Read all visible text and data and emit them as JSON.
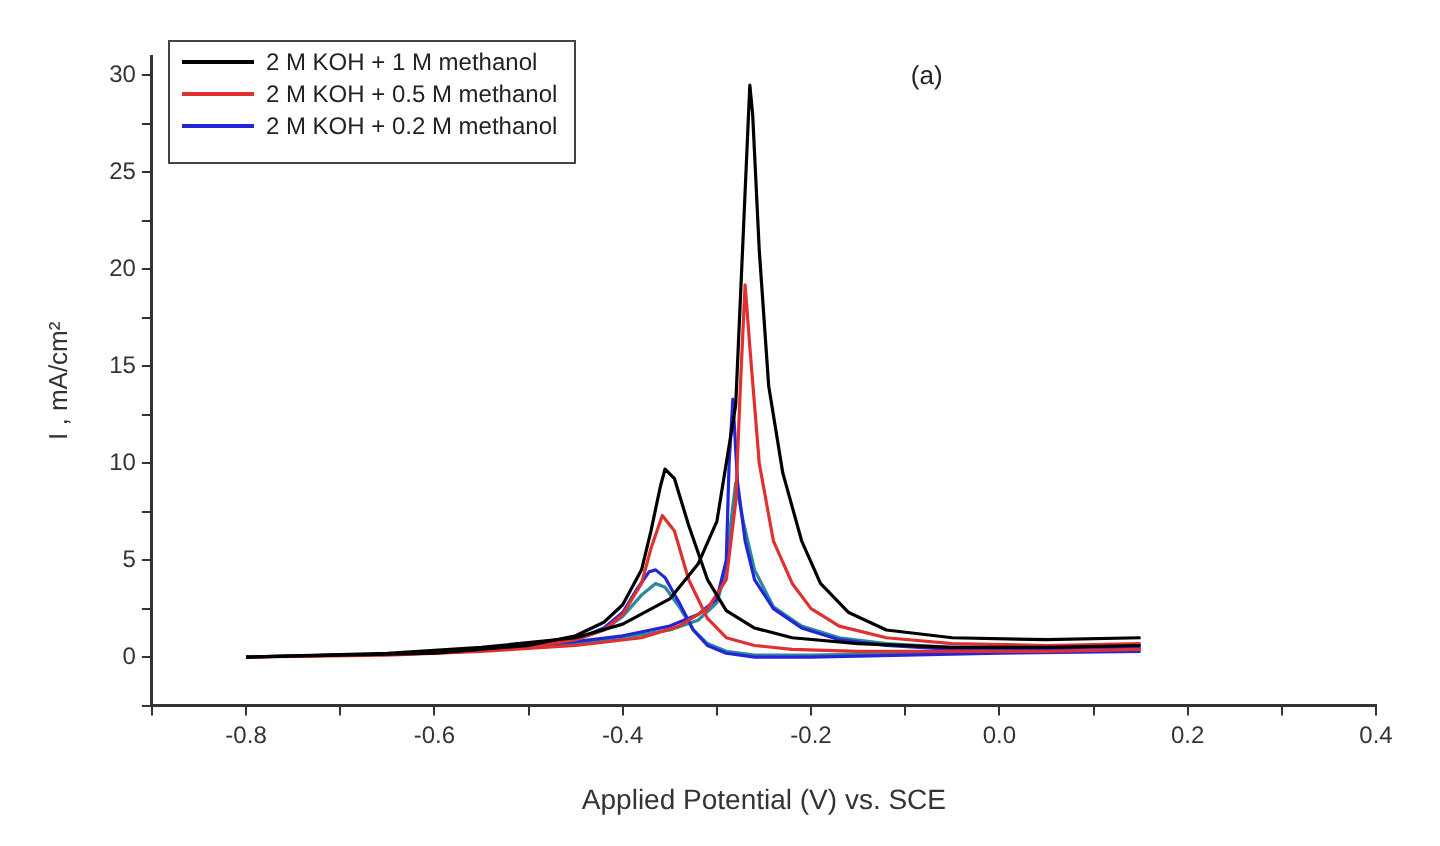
{
  "chart_data": {
    "type": "line",
    "xlabel": "Applied Potential (V) vs. SCE",
    "ylabel": "I , mA/cm²",
    "annotations": [
      "(a)"
    ],
    "xlim": [
      -0.9,
      0.4
    ],
    "xticks": [
      {
        "value": -0.9,
        "label": null
      },
      -0.8,
      {
        "value": -0.7,
        "label": null
      },
      -0.6,
      {
        "value": -0.5,
        "label": null
      },
      -0.4,
      {
        "value": -0.3,
        "label": null
      },
      -0.2,
      {
        "value": -0.1,
        "label": null
      },
      {
        "value": 0,
        "label": "0.0"
      },
      {
        "value": 0.1,
        "label": null
      },
      0.2,
      {
        "value": 0.3,
        "label": null
      },
      0.4
    ],
    "ylim": [
      -2.5,
      31
    ],
    "yticks": [
      {
        "value": -2.5,
        "label": null
      },
      0,
      {
        "value": 2.5,
        "label": null
      },
      5,
      {
        "value": 7.5,
        "label": null
      },
      10,
      {
        "value": 12.5,
        "label": null
      },
      15,
      {
        "value": 17.5,
        "label": null
      },
      20,
      {
        "value": 22.5,
        "label": null
      },
      25,
      {
        "value": 27.5,
        "label": null
      },
      30
    ],
    "grid": false,
    "legend": "top left",
    "marker": "none",
    "line_style": "solid",
    "series": [
      {
        "name": "2 M KOH + 1 M methanol",
        "color": "#000000",
        "x": [
          -0.8,
          -0.7,
          -0.6,
          -0.5,
          -0.45,
          -0.42,
          -0.4,
          -0.38,
          -0.37,
          -0.36,
          -0.355,
          -0.345,
          -0.33,
          -0.31,
          -0.29,
          -0.26,
          -0.22,
          -0.15,
          -0.05,
          0.05,
          0.15
        ],
        "values": [
          0,
          0.1,
          0.2,
          0.6,
          1.1,
          1.8,
          2.7,
          4.5,
          6.5,
          8.8,
          9.7,
          9.2,
          6.8,
          4,
          2.4,
          1.5,
          1,
          0.7,
          0.5,
          0.5,
          0.6
        ]
      },
      {
        "color": "#000000",
        "x": [
          -0.8,
          -0.65,
          -0.55,
          -0.45,
          -0.4,
          -0.35,
          -0.32,
          -0.3,
          -0.28,
          -0.27,
          -0.265,
          -0.262,
          -0.255,
          -0.245,
          -0.23,
          -0.21,
          -0.19,
          -0.16,
          -0.12,
          -0.05,
          0.05,
          0.15
        ],
        "values": [
          0,
          0.2,
          0.5,
          1,
          1.7,
          3,
          4.8,
          7,
          13,
          24,
          29.5,
          28,
          21,
          14,
          9.5,
          6,
          3.8,
          2.3,
          1.4,
          1,
          0.9,
          1
        ]
      },
      {
        "name": "2 M KOH + 0.5 M methanol",
        "color": "#e03030",
        "x": [
          -0.8,
          -0.7,
          -0.6,
          -0.5,
          -0.45,
          -0.42,
          -0.4,
          -0.38,
          -0.37,
          -0.358,
          -0.345,
          -0.33,
          -0.31,
          -0.29,
          -0.26,
          -0.22,
          -0.15,
          -0.05,
          0.05,
          0.15
        ],
        "values": [
          0,
          0.1,
          0.2,
          0.5,
          0.9,
          1.4,
          2.2,
          3.8,
          5.6,
          7.3,
          6.5,
          4,
          2,
          1,
          0.6,
          0.4,
          0.3,
          0.3,
          0.3,
          0.4
        ]
      },
      {
        "color": "#e03030",
        "x": [
          -0.8,
          -0.65,
          -0.55,
          -0.45,
          -0.38,
          -0.34,
          -0.31,
          -0.29,
          -0.28,
          -0.275,
          -0.27,
          -0.265,
          -0.255,
          -0.24,
          -0.22,
          -0.2,
          -0.17,
          -0.12,
          -0.05,
          0.05,
          0.15
        ],
        "values": [
          0,
          0.1,
          0.3,
          0.6,
          1,
          1.6,
          2.5,
          4,
          8,
          14,
          19.2,
          16,
          10,
          6,
          3.8,
          2.5,
          1.6,
          1,
          0.7,
          0.6,
          0.7
        ]
      },
      {
        "name": "2 M KOH + 0.2 M methanol",
        "color": "#2424d8",
        "x": [
          -0.5,
          -0.45,
          -0.42,
          -0.4,
          -0.385,
          -0.372,
          -0.365,
          -0.355,
          -0.34,
          -0.325,
          -0.31,
          -0.29,
          -0.26,
          -0.2,
          -0.1,
          0,
          0.15
        ],
        "values": [
          0.5,
          0.9,
          1.5,
          2.3,
          3.5,
          4.4,
          4.5,
          4.1,
          2.8,
          1.4,
          0.6,
          0.2,
          0,
          0,
          0.1,
          0.2,
          0.3
        ]
      },
      {
        "color": "#2424d8",
        "x": [
          -0.55,
          -0.45,
          -0.4,
          -0.35,
          -0.32,
          -0.3,
          -0.29,
          -0.287,
          -0.283,
          -0.278,
          -0.27,
          -0.26,
          -0.24,
          -0.21,
          -0.17,
          -0.12,
          -0.05,
          0.05,
          0.15
        ],
        "values": [
          0.4,
          0.8,
          1.1,
          1.6,
          2.2,
          3,
          5,
          10,
          13.3,
          9,
          6,
          4,
          2.5,
          1.5,
          0.9,
          0.6,
          0.4,
          0.4,
          0.5
        ]
      },
      {
        "color": "#2a8a9a",
        "x": [
          -0.5,
          -0.45,
          -0.42,
          -0.4,
          -0.38,
          -0.365,
          -0.355,
          -0.34,
          -0.325,
          -0.31,
          -0.29,
          -0.26,
          -0.2,
          -0.1,
          0,
          0.15
        ],
        "values": [
          0.5,
          0.9,
          1.4,
          2.1,
          3.2,
          3.8,
          3.6,
          2.6,
          1.4,
          0.7,
          0.3,
          0.1,
          0.1,
          0.2,
          0.3,
          0.4
        ]
      },
      {
        "color": "#2a8a9a",
        "x": [
          -0.55,
          -0.45,
          -0.4,
          -0.35,
          -0.32,
          -0.3,
          -0.29,
          -0.285,
          -0.28,
          -0.272,
          -0.26,
          -0.24,
          -0.21,
          -0.17,
          -0.12,
          -0.05,
          0.05,
          0.15
        ],
        "values": [
          0.4,
          0.7,
          1,
          1.4,
          1.9,
          2.8,
          4.5,
          7,
          9,
          7,
          4.5,
          2.6,
          1.6,
          1,
          0.7,
          0.5,
          0.5,
          0.6
        ]
      }
    ]
  }
}
